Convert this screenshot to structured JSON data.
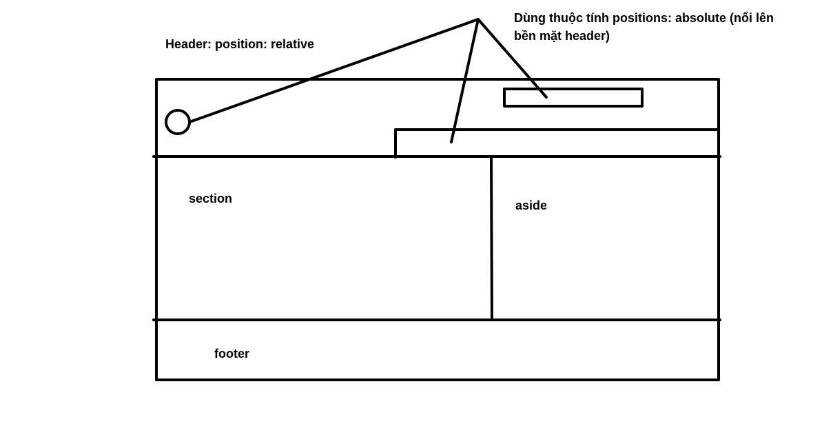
{
  "labels": {
    "header_note": "Header: position:  relative",
    "absolute_note_line1": "Dùng thuộc tính positions: absolute (nổi  lên",
    "absolute_note_line2": "bền mặt header)",
    "section": "section",
    "aside": "aside",
    "footer": "footer"
  },
  "colors": {
    "ink": "#000000",
    "background": "#ffffff"
  }
}
